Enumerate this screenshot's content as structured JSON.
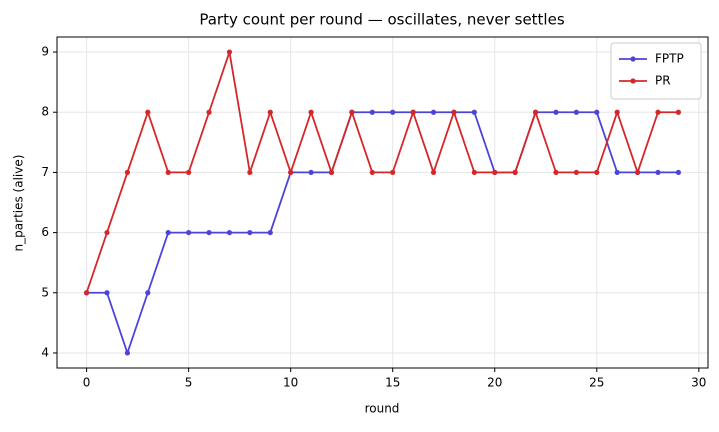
{
  "chart_data": {
    "type": "line",
    "title": "Party count per round — oscillates, never settles",
    "x_label": "round",
    "y_label": "n_parties (alive)",
    "x": [
      0,
      1,
      2,
      3,
      4,
      5,
      6,
      7,
      8,
      9,
      10,
      11,
      12,
      13,
      14,
      15,
      16,
      17,
      18,
      19,
      20,
      21,
      22,
      23,
      24,
      25,
      26,
      27,
      28,
      29
    ],
    "series": [
      {
        "name": "FPTP",
        "color": "#4b44d8",
        "values": [
          5,
          5,
          4,
          5,
          6,
          6,
          6,
          6,
          6,
          6,
          7,
          7,
          7,
          8,
          8,
          8,
          8,
          8,
          8,
          8,
          7,
          7,
          8,
          8,
          8,
          8,
          7,
          7,
          7,
          7
        ]
      },
      {
        "name": "PR",
        "color": "#d62728",
        "values": [
          5,
          6,
          7,
          8,
          7,
          7,
          8,
          9,
          7,
          8,
          7,
          8,
          7,
          8,
          7,
          7,
          8,
          7,
          8,
          7,
          7,
          7,
          8,
          7,
          7,
          7,
          8,
          7,
          8,
          8
        ]
      }
    ],
    "xlim": [
      -1.45,
      30.45
    ],
    "ylim": [
      3.75,
      9.25
    ],
    "xticks": [
      0,
      5,
      10,
      15,
      20,
      25,
      30
    ],
    "yticks": [
      4,
      5,
      6,
      7,
      8,
      9
    ],
    "grid": true,
    "legend": "upper right"
  }
}
